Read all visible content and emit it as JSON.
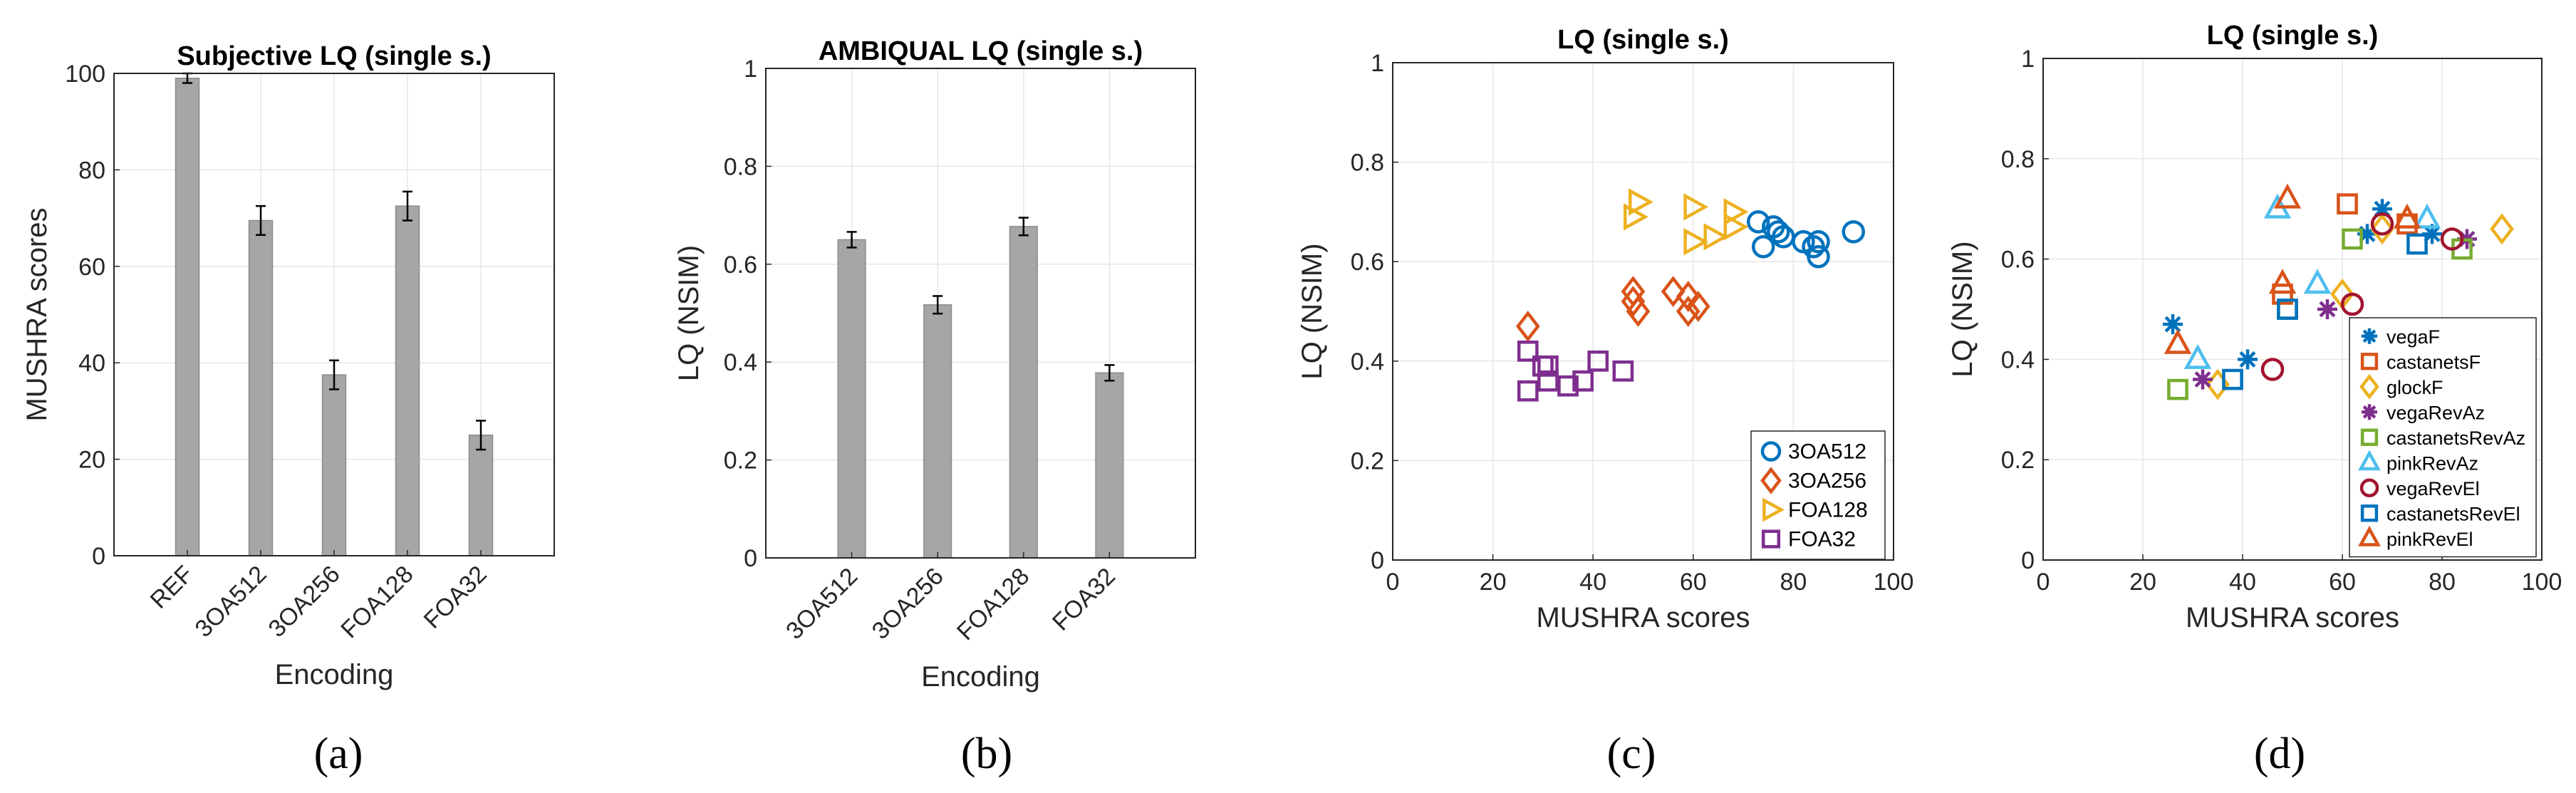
{
  "figure": {
    "captions": [
      "(a)",
      "(b)",
      "(c)",
      "(d)"
    ]
  },
  "chart_data": [
    {
      "type": "bar",
      "title": "Subjective LQ (single s.)",
      "xlabel": "Encoding",
      "ylabel": "MUSHRA scores",
      "categories": [
        "REF",
        "3OA512",
        "3OA256",
        "FOA128",
        "FOA32"
      ],
      "values": [
        99,
        69.5,
        37.5,
        72.5,
        25
      ],
      "errors": [
        1,
        3,
        3,
        3,
        3
      ],
      "ylim": [
        0,
        100
      ],
      "yticks": [
        0,
        20,
        40,
        60,
        80,
        100
      ],
      "bar_color": "#a6a6a6",
      "grid": true
    },
    {
      "type": "bar",
      "title": "AMBIQUAL LQ (single s.)",
      "xlabel": "Encoding",
      "ylabel": "LQ (NSIM)",
      "categories": [
        "3OA512",
        "3OA256",
        "FOA128",
        "FOA32"
      ],
      "values": [
        0.65,
        0.517,
        0.677,
        0.378
      ],
      "errors": [
        0.016,
        0.018,
        0.018,
        0.016
      ],
      "ylim": [
        0,
        1
      ],
      "yticks": [
        "0",
        "0.2",
        "0.4",
        "0.6",
        "0.8",
        "1"
      ],
      "bar_color": "#a6a6a6",
      "grid": true
    },
    {
      "type": "scatter",
      "title": "LQ (single s.)",
      "xlabel": "MUSHRA scores",
      "ylabel": "LQ (NSIM)",
      "xlim": [
        0,
        100
      ],
      "ylim": [
        0,
        1
      ],
      "xticks": [
        "0",
        "20",
        "40",
        "60",
        "80",
        "100"
      ],
      "yticks": [
        "0",
        "0.2",
        "0.4",
        "0.6",
        "0.8",
        "1"
      ],
      "legend_position": "bottom-right",
      "grid": true,
      "series": [
        {
          "name": "3OA512",
          "marker": "circle",
          "color": "#0072bd",
          "points": [
            [
              73,
              0.68
            ],
            [
              74,
              0.63
            ],
            [
              76,
              0.67
            ],
            [
              77,
              0.66
            ],
            [
              78,
              0.65
            ],
            [
              82,
              0.64
            ],
            [
              84,
              0.63
            ],
            [
              85,
              0.64
            ],
            [
              85,
              0.61
            ],
            [
              92,
              0.66
            ]
          ]
        },
        {
          "name": "3OA256",
          "marker": "diamond",
          "color": "#d95319",
          "points": [
            [
              27,
              0.47
            ],
            [
              48,
              0.54
            ],
            [
              48,
              0.52
            ],
            [
              49,
              0.5
            ],
            [
              56,
              0.54
            ],
            [
              59,
              0.53
            ],
            [
              59,
              0.5
            ],
            [
              61,
              0.51
            ]
          ]
        },
        {
          "name": "FOA128",
          "marker": "triangle-right",
          "color": "#edb120",
          "points": [
            [
              49,
              0.72
            ],
            [
              48,
              0.69
            ],
            [
              60,
              0.71
            ],
            [
              60,
              0.64
            ],
            [
              64,
              0.65
            ],
            [
              68,
              0.7
            ],
            [
              68,
              0.67
            ]
          ]
        },
        {
          "name": "FOA32",
          "marker": "square",
          "color": "#7e2f8e",
          "points": [
            [
              27,
              0.42
            ],
            [
              30,
              0.39
            ],
            [
              31,
              0.39
            ],
            [
              27,
              0.34
            ],
            [
              31,
              0.36
            ],
            [
              35,
              0.35
            ],
            [
              38,
              0.36
            ],
            [
              41,
              0.4
            ],
            [
              46,
              0.38
            ]
          ]
        }
      ]
    },
    {
      "type": "scatter",
      "title": "LQ (single s.)",
      "xlabel": "MUSHRA scores",
      "ylabel": "LQ (NSIM)",
      "xlim": [
        0,
        100
      ],
      "ylim": [
        0,
        1
      ],
      "xticks": [
        "0",
        "20",
        "40",
        "60",
        "80",
        "100"
      ],
      "yticks": [
        "0",
        "0.2",
        "0.4",
        "0.6",
        "0.8",
        "1"
      ],
      "legend_position": "right",
      "grid": true,
      "series": [
        {
          "name": "vegaF",
          "marker": "asterisk",
          "color": "#0072bd",
          "points": [
            [
              26,
              0.47
            ],
            [
              41,
              0.4
            ],
            [
              65,
              0.65
            ],
            [
              68,
              0.7
            ],
            [
              78,
              0.65
            ]
          ]
        },
        {
          "name": "castanetsF",
          "marker": "square",
          "color": "#d95319",
          "points": [
            [
              48,
              0.53
            ],
            [
              61,
              0.71
            ],
            [
              73,
              0.67
            ]
          ]
        },
        {
          "name": "glockF",
          "marker": "diamond",
          "color": "#edb120",
          "points": [
            [
              35,
              0.35
            ],
            [
              60,
              0.53
            ],
            [
              68,
              0.66
            ],
            [
              92,
              0.66
            ]
          ]
        },
        {
          "name": "vegaRevAz",
          "marker": "asterisk",
          "color": "#7e2f8e",
          "points": [
            [
              32,
              0.36
            ],
            [
              57,
              0.5
            ],
            [
              85,
              0.64
            ]
          ]
        },
        {
          "name": "castanetsRevAz",
          "marker": "square",
          "color": "#77ac30",
          "points": [
            [
              27,
              0.34
            ],
            [
              49,
              0.5
            ],
            [
              62,
              0.64
            ],
            [
              84,
              0.62
            ]
          ]
        },
        {
          "name": "pinkRevAz",
          "marker": "triangle",
          "color": "#4dbeee",
          "points": [
            [
              31,
              0.4
            ],
            [
              47,
              0.7
            ],
            [
              55,
              0.55
            ],
            [
              77,
              0.68
            ]
          ]
        },
        {
          "name": "vegaRevEl",
          "marker": "circle",
          "color": "#a2142f",
          "points": [
            [
              46,
              0.38
            ],
            [
              62,
              0.51
            ],
            [
              68,
              0.67
            ],
            [
              82,
              0.64
            ]
          ]
        },
        {
          "name": "castanetsRevEl",
          "marker": "square",
          "color": "#0072bd",
          "points": [
            [
              38,
              0.36
            ],
            [
              49,
              0.5
            ],
            [
              75,
              0.63
            ]
          ]
        },
        {
          "name": "pinkRevEl",
          "marker": "triangle",
          "color": "#d95319",
          "points": [
            [
              27,
              0.43
            ],
            [
              48,
              0.55
            ],
            [
              49,
              0.72
            ],
            [
              73,
              0.68
            ]
          ]
        }
      ]
    }
  ]
}
